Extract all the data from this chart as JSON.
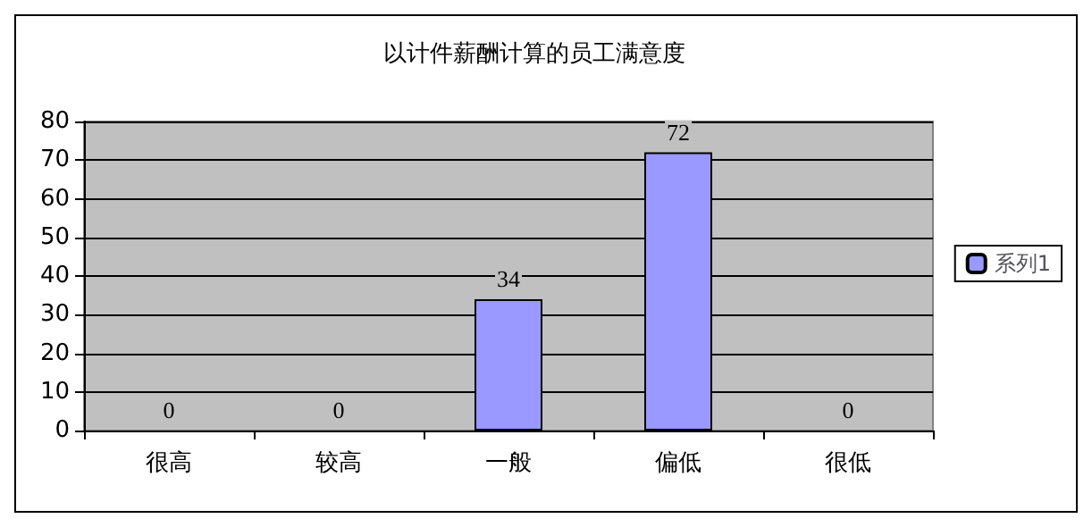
{
  "chart_data": {
    "type": "bar",
    "title": "以计件薪酬计算的员工满意度",
    "categories": [
      "很高",
      "较高",
      "一般",
      "偏低",
      "很低"
    ],
    "series": [
      {
        "name": "系列1",
        "color": "#9999ff",
        "values": [
          0,
          0,
          34,
          72,
          0
        ]
      }
    ],
    "ylim": [
      0,
      80
    ],
    "yticks": [
      0,
      10,
      20,
      30,
      40,
      50,
      60,
      70,
      80
    ],
    "grid": "y",
    "legend": "right",
    "data_labels": true
  }
}
